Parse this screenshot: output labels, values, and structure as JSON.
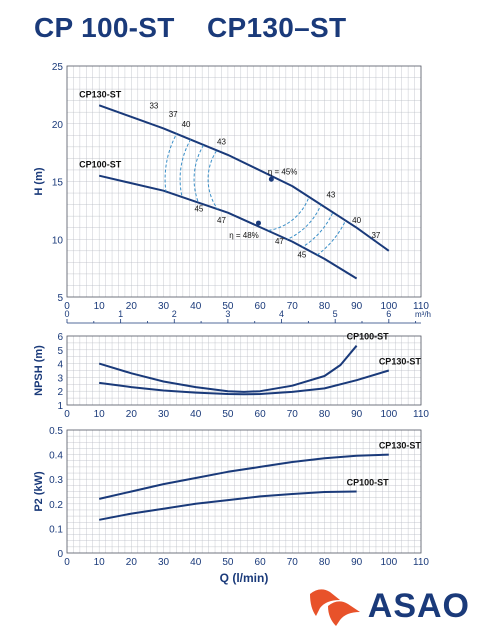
{
  "title": "CP 100-ST    CP130–ST",
  "brand": {
    "name": "ASAO",
    "color": "#1a3a7a",
    "accent": "#e8522a"
  },
  "chart_data": [
    {
      "type": "line",
      "ylabel": "H (m)",
      "xlim": [
        0,
        110
      ],
      "ylim": [
        5,
        25
      ],
      "x_ticks": [
        "0",
        "10",
        "20",
        "30",
        "40",
        "50",
        "60",
        "70",
        "80",
        "90",
        "100",
        "110"
      ],
      "y_ticks": [
        "5",
        "10",
        "15",
        "20",
        "25"
      ],
      "secondary_axis": {
        "unit": "m³/h",
        "ticks": [
          "0",
          "1",
          "2",
          "3",
          "4",
          "5",
          "6"
        ]
      },
      "series": [
        {
          "name": "CP130-ST",
          "x": [
            10,
            30,
            50,
            70,
            90,
            100
          ],
          "y": [
            21.6,
            19.6,
            17.3,
            14.6,
            11.0,
            9.0
          ]
        },
        {
          "name": "CP100-ST",
          "x": [
            10,
            30,
            50,
            70,
            80,
            90
          ],
          "y": [
            15.5,
            14.2,
            12.3,
            9.8,
            8.3,
            6.6
          ]
        }
      ],
      "efficiency_labels": [
        "33",
        "37",
        "40",
        "43",
        "η = 45%",
        "45",
        "47",
        "η = 48%",
        "47",
        "45",
        "43",
        "40",
        "37"
      ]
    },
    {
      "type": "line",
      "ylabel": "NPSH (m)",
      "xlim": [
        0,
        110
      ],
      "ylim": [
        1,
        6
      ],
      "x_ticks": [
        "0",
        "10",
        "20",
        "30",
        "40",
        "50",
        "60",
        "70",
        "80",
        "90",
        "100",
        "110"
      ],
      "y_ticks": [
        "1",
        "2",
        "3",
        "4",
        "5",
        "6"
      ],
      "series": [
        {
          "name": "CP100-ST",
          "x": [
            10,
            20,
            30,
            40,
            50,
            55,
            60,
            70,
            80,
            85,
            90
          ],
          "y": [
            4.0,
            3.3,
            2.7,
            2.3,
            2.0,
            1.95,
            2.0,
            2.4,
            3.1,
            3.9,
            5.3
          ]
        },
        {
          "name": "CP130-ST",
          "x": [
            10,
            20,
            30,
            40,
            50,
            55,
            60,
            70,
            80,
            90,
            100
          ],
          "y": [
            2.6,
            2.3,
            2.05,
            1.9,
            1.8,
            1.78,
            1.8,
            1.95,
            2.2,
            2.8,
            3.5
          ]
        }
      ]
    },
    {
      "type": "line",
      "ylabel": "P2 (kW)",
      "xlabel": "Q (l/min)",
      "xlim": [
        0,
        110
      ],
      "ylim": [
        0,
        0.5
      ],
      "x_ticks": [
        "0",
        "10",
        "20",
        "30",
        "40",
        "50",
        "60",
        "70",
        "80",
        "90",
        "100",
        "110"
      ],
      "y_ticks": [
        "0",
        "0.1",
        "0.2",
        "0.3",
        "0.4",
        "0.5"
      ],
      "series": [
        {
          "name": "CP130-ST",
          "x": [
            10,
            20,
            30,
            40,
            50,
            60,
            70,
            80,
            90,
            100
          ],
          "y": [
            0.22,
            0.25,
            0.28,
            0.305,
            0.33,
            0.35,
            0.37,
            0.385,
            0.395,
            0.4
          ]
        },
        {
          "name": "CP100-ST",
          "x": [
            10,
            20,
            30,
            40,
            50,
            60,
            70,
            80,
            90
          ],
          "y": [
            0.135,
            0.16,
            0.18,
            0.2,
            0.215,
            0.23,
            0.24,
            0.248,
            0.25
          ]
        }
      ]
    }
  ]
}
